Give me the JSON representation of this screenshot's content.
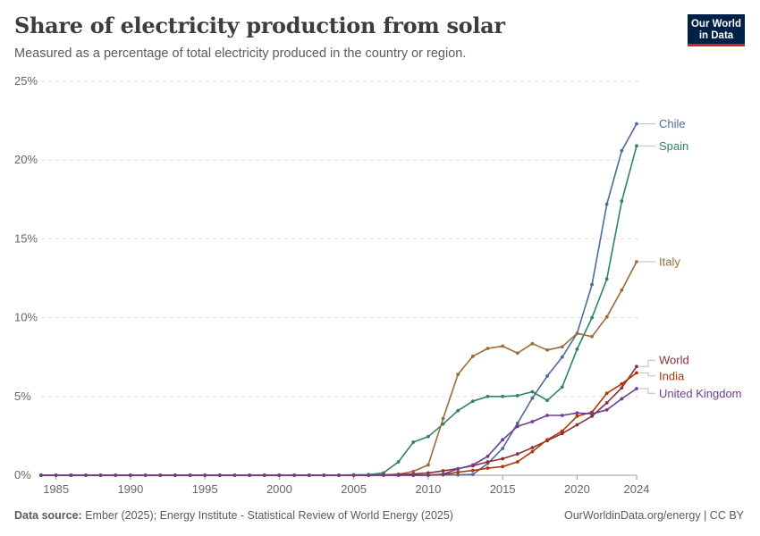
{
  "header": {
    "title": "Share of electricity production from solar",
    "subtitle": "Measured as a percentage of total electricity produced in the country or region."
  },
  "logo": {
    "line1": "Our World",
    "line2": "in Data"
  },
  "footer": {
    "source_label": "Data source:",
    "source_text": "Ember (2025); Energy Institute - Statistical Review of World Energy (2025)",
    "right_text": "OurWorldinData.org/energy | CC BY"
  },
  "colors": {
    "grid": "#dddddd",
    "axis": "#999999"
  },
  "chart_data": {
    "type": "line",
    "title": "Share of electricity production from solar",
    "xlim": [
      1984,
      2024
    ],
    "ylim": [
      0,
      25
    ],
    "x_ticks": [
      1985,
      1990,
      1995,
      2000,
      2005,
      2010,
      2015,
      2020,
      2024
    ],
    "y_ticks": [
      0,
      5,
      10,
      15,
      20,
      25
    ],
    "y_tick_labels": [
      "0%",
      "5%",
      "10%",
      "15%",
      "20%",
      "25%"
    ],
    "grid": true,
    "legend": "right-end labels",
    "x": [
      1984,
      1985,
      1986,
      1987,
      1988,
      1989,
      1990,
      1991,
      1992,
      1993,
      1994,
      1995,
      1996,
      1997,
      1998,
      1999,
      2000,
      2001,
      2002,
      2003,
      2004,
      2005,
      2006,
      2007,
      2008,
      2009,
      2010,
      2011,
      2012,
      2013,
      2014,
      2015,
      2016,
      2017,
      2018,
      2019,
      2020,
      2021,
      2022,
      2023,
      2024
    ],
    "series": [
      {
        "name": "Chile",
        "color": "#4c6a9c",
        "values": [
          0,
          0,
          0,
          0,
          0,
          0,
          0,
          0,
          0,
          0,
          0,
          0,
          0,
          0,
          0,
          0,
          0,
          0,
          0,
          0,
          0,
          0,
          0,
          0,
          0,
          0,
          0,
          0.02,
          0.02,
          0.05,
          0.75,
          1.7,
          3.3,
          4.9,
          6.3,
          7.5,
          9.0,
          12.1,
          17.2,
          20.6,
          22.3
        ]
      },
      {
        "name": "Spain",
        "color": "#2c8465",
        "values": [
          0,
          0,
          0,
          0,
          0,
          0,
          0,
          0,
          0,
          0,
          0,
          0,
          0,
          0,
          0,
          0,
          0,
          0,
          0,
          0,
          0.01,
          0.03,
          0.04,
          0.15,
          0.85,
          2.1,
          2.45,
          3.25,
          4.1,
          4.7,
          5.0,
          5.0,
          5.05,
          5.3,
          4.75,
          5.6,
          8.0,
          10.0,
          12.45,
          17.4,
          20.9
        ]
      },
      {
        "name": "Italy",
        "color": "#996d39",
        "values": [
          0,
          0,
          0,
          0,
          0,
          0,
          0,
          0,
          0,
          0,
          0,
          0,
          0,
          0,
          0,
          0,
          0,
          0,
          0,
          0,
          0,
          0,
          0,
          0.01,
          0.06,
          0.25,
          0.65,
          3.6,
          6.4,
          7.55,
          8.05,
          8.2,
          7.75,
          8.35,
          7.95,
          8.15,
          9.0,
          8.8,
          10.05,
          11.75,
          13.55
        ]
      },
      {
        "name": "World",
        "color": "#883039",
        "values": [
          0,
          0,
          0,
          0,
          0,
          0,
          0,
          0,
          0,
          0,
          0,
          0,
          0,
          0,
          0,
          0,
          0,
          0,
          0,
          0,
          0,
          0,
          0,
          0.02,
          0.05,
          0.08,
          0.15,
          0.28,
          0.42,
          0.6,
          0.85,
          1.05,
          1.35,
          1.75,
          2.2,
          2.65,
          3.2,
          3.75,
          4.6,
          5.55,
          6.9
        ]
      },
      {
        "name": "India",
        "color": "#b13507",
        "values": [
          0,
          0,
          0,
          0,
          0,
          0,
          0,
          0,
          0,
          0,
          0,
          0,
          0,
          0,
          0,
          0,
          0,
          0,
          0,
          0,
          0,
          0,
          0,
          0,
          0,
          0,
          0.01,
          0.04,
          0.2,
          0.3,
          0.45,
          0.55,
          0.85,
          1.5,
          2.25,
          2.8,
          3.75,
          4.0,
          5.2,
          5.8,
          6.5
        ]
      },
      {
        "name": "United Kingdom",
        "color": "#6d3e91",
        "values": [
          0,
          0,
          0,
          0,
          0,
          0,
          0,
          0,
          0,
          0,
          0,
          0,
          0,
          0,
          0,
          0,
          0,
          0,
          0,
          0,
          0,
          0,
          0,
          0,
          0,
          0.01,
          0.01,
          0.07,
          0.4,
          0.65,
          1.2,
          2.25,
          3.1,
          3.4,
          3.8,
          3.8,
          3.95,
          3.9,
          4.15,
          4.85,
          5.5
        ]
      }
    ],
    "label_y": {
      "Chile": 22.3,
      "Spain": 20.9,
      "Italy": 13.55,
      "World": 7.3,
      "India": 6.3,
      "United Kingdom": 5.2
    }
  }
}
